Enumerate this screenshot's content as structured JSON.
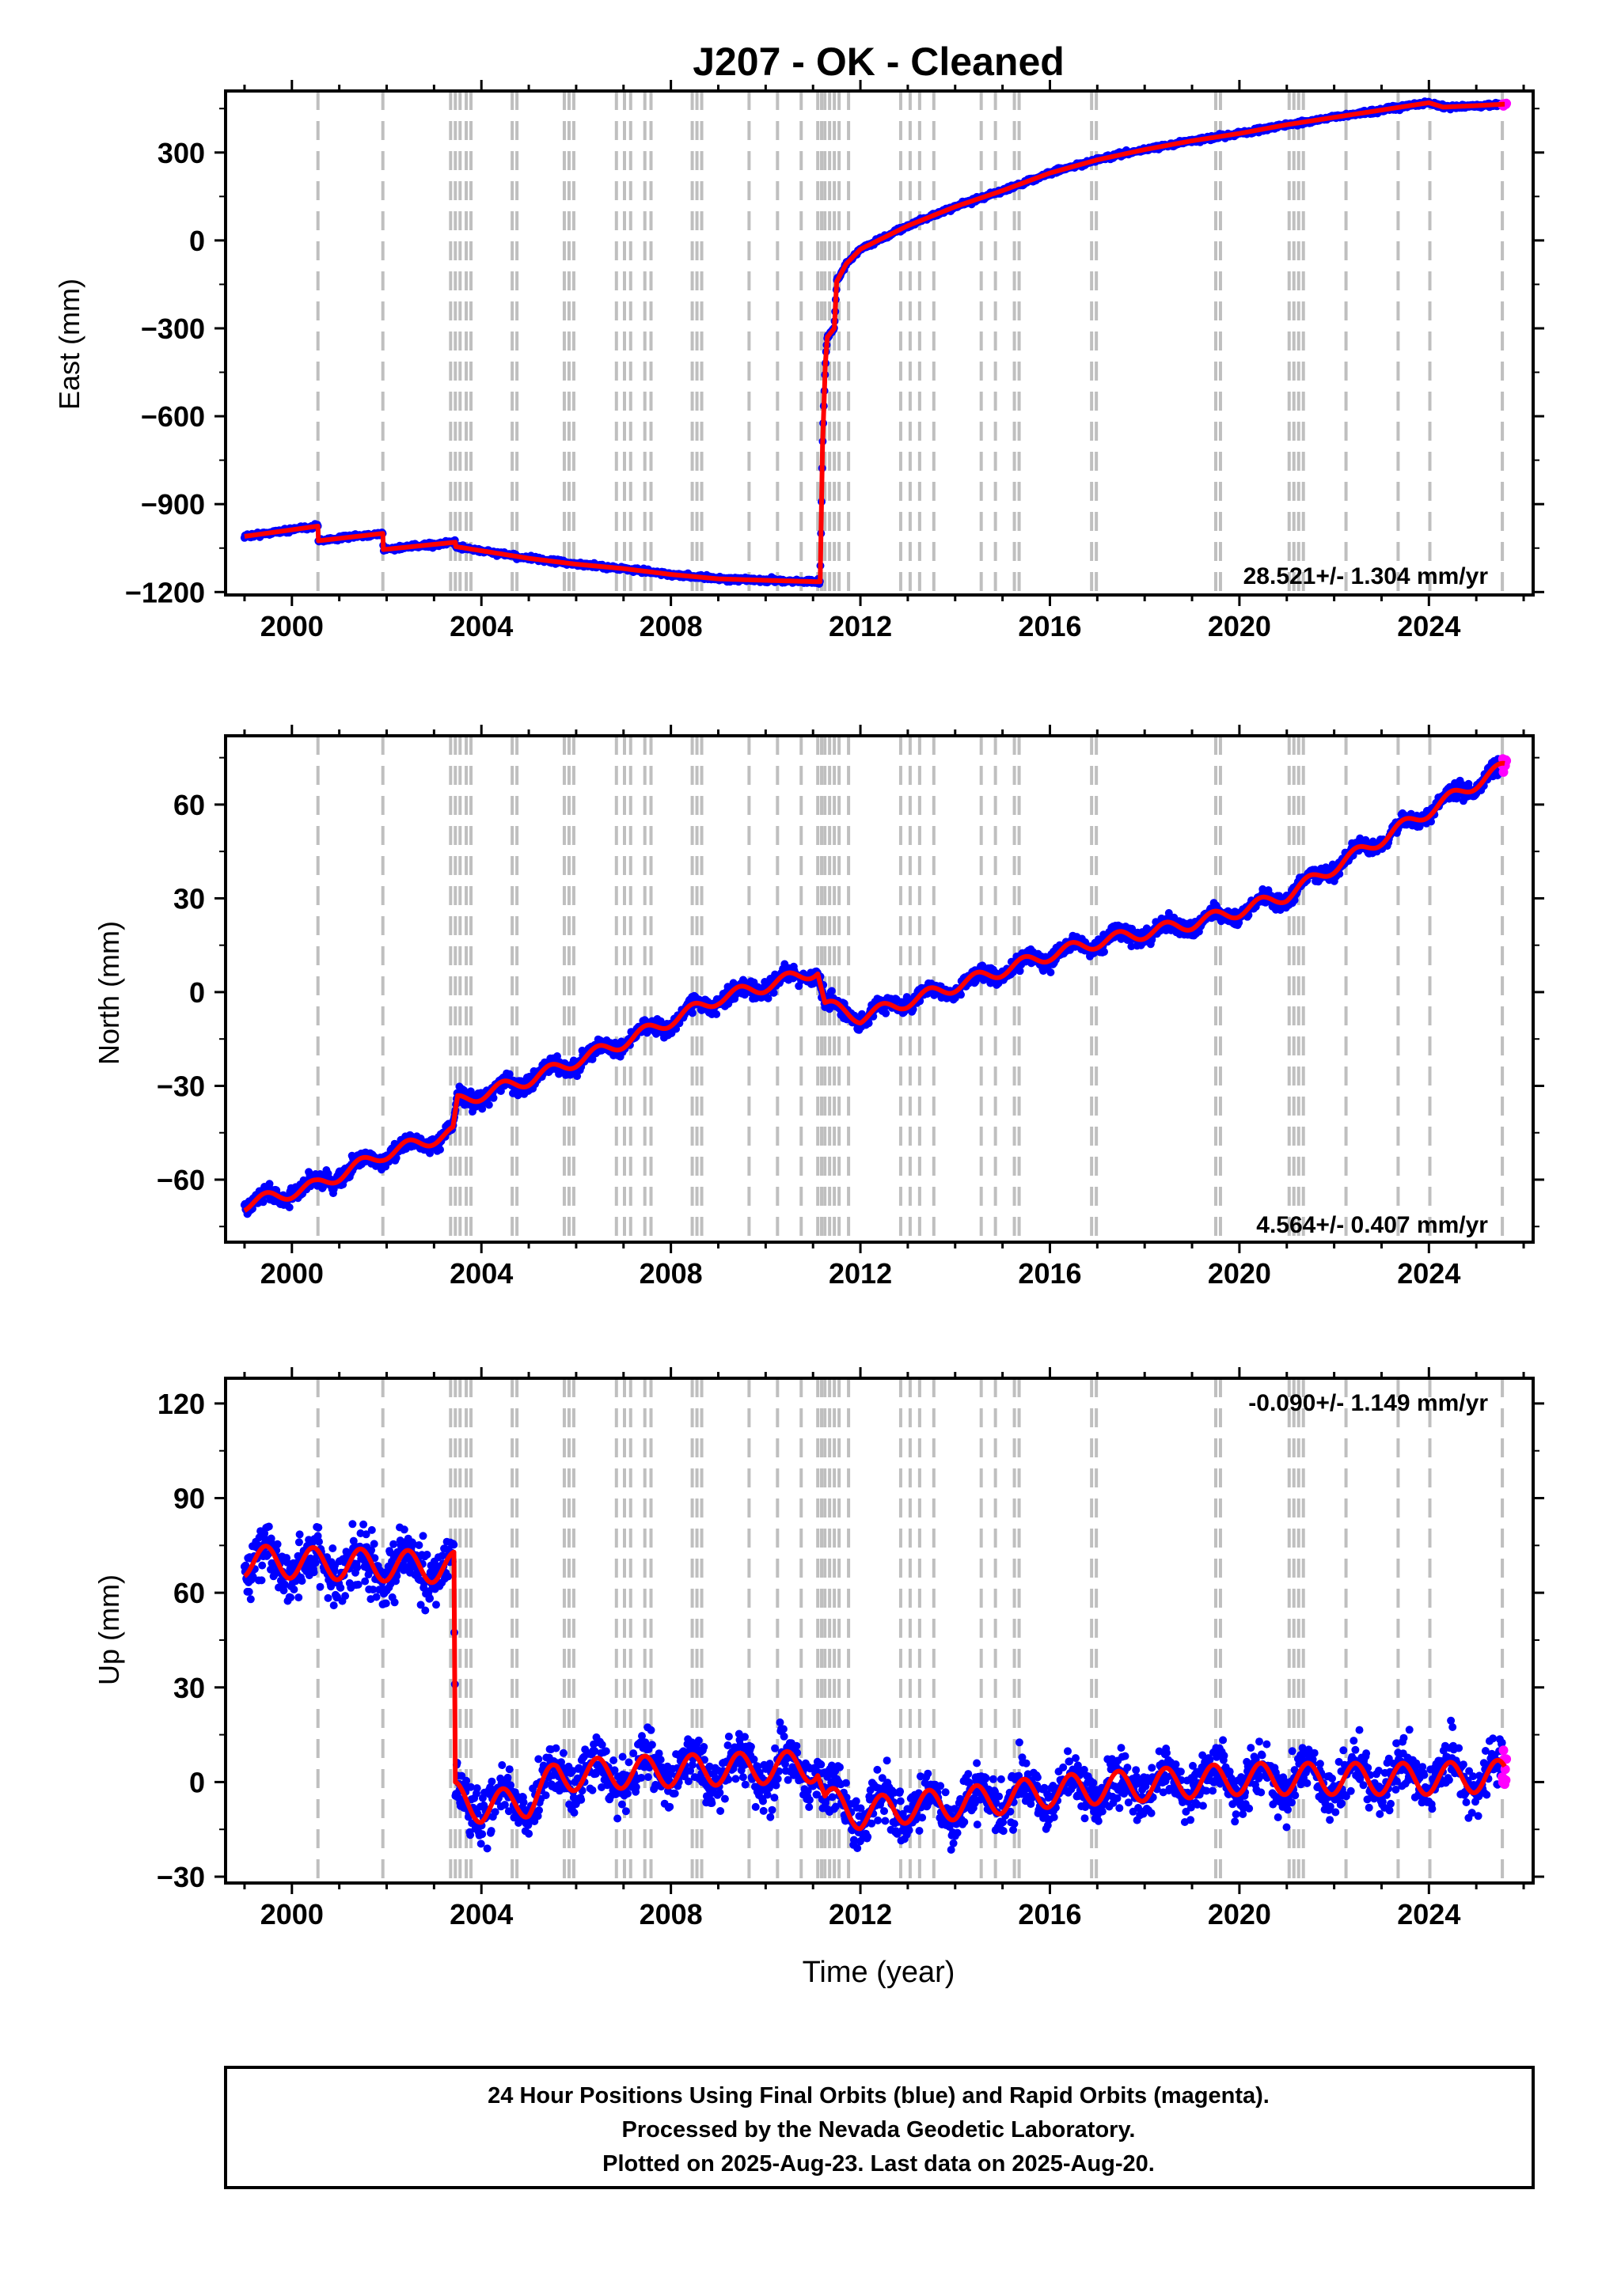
{
  "title": "J207  - OK - Cleaned",
  "colors": {
    "final_orbits": "#0000ff",
    "rapid_orbits": "#ff00ff",
    "model": "#ff0000",
    "events": "#bfbfbf"
  },
  "event_years": [
    2000.55,
    2001.92,
    2003.35,
    2003.45,
    2003.55,
    2003.68,
    2003.78,
    2004.65,
    2004.75,
    2005.75,
    2005.85,
    2005.95,
    2006.85,
    2007.02,
    2007.15,
    2007.45,
    2007.58,
    2008.45,
    2008.55,
    2008.65,
    2009.65,
    2010.25,
    2010.75,
    2011.1,
    2011.18,
    2011.25,
    2011.35,
    2011.45,
    2011.55,
    2011.75,
    2012.85,
    2013.05,
    2013.25,
    2013.55,
    2014.55,
    2014.85,
    2015.25,
    2015.35,
    2016.88,
    2016.98,
    2019.5,
    2019.6,
    2021.05,
    2021.15,
    2021.25,
    2021.35,
    2022.25,
    2023.35,
    2024.02,
    2025.55
  ],
  "chart_data": [
    {
      "type": "scatter",
      "ylabel": "East (mm)",
      "xlim": [
        1998.6,
        2026.2
      ],
      "ylim": [
        -1210,
        510
      ],
      "xticks": [
        2000,
        2004,
        2008,
        2012,
        2016,
        2020,
        2024
      ],
      "xtick_labels": [
        "2000",
        "2004",
        "2008",
        "2012",
        "2016",
        "2020",
        "2024"
      ],
      "yticks": [
        -1200,
        -900,
        -600,
        -300,
        0,
        300
      ],
      "ytick_labels": [
        "−1200",
        "−900",
        "−600",
        "−300",
        "0",
        "300"
      ],
      "rate_label": "28.521+/- 1.304 mm/yr",
      "model_knots": [
        [
          1999.0,
          -1010
        ],
        [
          2000.55,
          -975
        ],
        [
          2000.56,
          -1025
        ],
        [
          2001.92,
          -1000
        ],
        [
          2001.93,
          -1055
        ],
        [
          2003.45,
          -1030
        ],
        [
          2003.46,
          -1045
        ],
        [
          2005.0,
          -1085
        ],
        [
          2006.0,
          -1105
        ],
        [
          2007.0,
          -1120
        ],
        [
          2008.0,
          -1140
        ],
        [
          2009.0,
          -1155
        ],
        [
          2010.0,
          -1160
        ],
        [
          2011.15,
          -1165
        ],
        [
          2011.2,
          -700
        ],
        [
          2011.26,
          -420
        ],
        [
          2011.3,
          -330
        ],
        [
          2011.45,
          -300
        ],
        [
          2011.5,
          -140
        ],
        [
          2011.7,
          -80
        ],
        [
          2012.0,
          -30
        ],
        [
          2013.0,
          50
        ],
        [
          2014.0,
          115
        ],
        [
          2015.0,
          170
        ],
        [
          2016.0,
          230
        ],
        [
          2017.0,
          275
        ],
        [
          2018.0,
          310
        ],
        [
          2019.0,
          340
        ],
        [
          2020.0,
          365
        ],
        [
          2021.0,
          395
        ],
        [
          2022.0,
          420
        ],
        [
          2023.0,
          445
        ],
        [
          2024.0,
          470
        ],
        [
          2024.3,
          455
        ],
        [
          2025.0,
          460
        ],
        [
          2025.6,
          465
        ]
      ],
      "noise": 6,
      "seasonal": 0
    },
    {
      "type": "scatter",
      "ylabel": "North (mm)",
      "xlim": [
        1998.6,
        2026.2
      ],
      "ylim": [
        -80,
        82
      ],
      "xticks": [
        2000,
        2004,
        2008,
        2012,
        2016,
        2020,
        2024
      ],
      "xtick_labels": [
        "2000",
        "2004",
        "2008",
        "2012",
        "2016",
        "2020",
        "2024"
      ],
      "yticks": [
        -60,
        -30,
        0,
        30,
        60
      ],
      "ytick_labels": [
        "−60",
        "−30",
        "0",
        "30",
        "60"
      ],
      "rate_label": "4.564+/- 0.407 mm/yr",
      "model_knots": [
        [
          1999.0,
          -68
        ],
        [
          2000.5,
          -62
        ],
        [
          2001.9,
          -52
        ],
        [
          2003.4,
          -45
        ],
        [
          2003.5,
          -35
        ],
        [
          2005.0,
          -28
        ],
        [
          2006.0,
          -22
        ],
        [
          2007.0,
          -16
        ],
        [
          2008.0,
          -9
        ],
        [
          2009.0,
          -2
        ],
        [
          2010.0,
          2
        ],
        [
          2011.1,
          7
        ],
        [
          2011.25,
          -4
        ],
        [
          2012.0,
          -8
        ],
        [
          2013.0,
          -3
        ],
        [
          2014.0,
          2
        ],
        [
          2015.0,
          7
        ],
        [
          2016.0,
          12
        ],
        [
          2017.0,
          16
        ],
        [
          2018.0,
          19
        ],
        [
          2019.0,
          22
        ],
        [
          2020.0,
          26
        ],
        [
          2021.0,
          31
        ],
        [
          2022.0,
          40
        ],
        [
          2023.0,
          49
        ],
        [
          2024.0,
          58
        ],
        [
          2025.0,
          67
        ],
        [
          2025.6,
          72
        ]
      ],
      "noise": 2.2,
      "seasonal": 2.0
    },
    {
      "type": "scatter",
      "ylabel": "Up (mm)",
      "xlabel": "Time (year)",
      "xlim": [
        1998.6,
        2026.2
      ],
      "ylim": [
        -32,
        128
      ],
      "xticks": [
        2000,
        2004,
        2008,
        2012,
        2016,
        2020,
        2024
      ],
      "xtick_labels": [
        "2000",
        "2004",
        "2008",
        "2012",
        "2016",
        "2020",
        "2024"
      ],
      "yticks": [
        -30,
        0,
        30,
        60,
        90,
        120
      ],
      "ytick_labels": [
        "−30",
        "0",
        "30",
        "60",
        "90",
        "120"
      ],
      "rate_label": "-0.090+/- 1.149 mm/yr",
      "model_knots": [
        [
          1999.0,
          70
        ],
        [
          2003.42,
          68
        ],
        [
          2003.45,
          -5
        ],
        [
          2004.0,
          -8
        ],
        [
          2005.0,
          -6
        ],
        [
          2005.6,
          2
        ],
        [
          2007.0,
          3
        ],
        [
          2009.0,
          4
        ],
        [
          2011.1,
          5
        ],
        [
          2011.25,
          -6
        ],
        [
          2012.0,
          -10
        ],
        [
          2013.0,
          -8
        ],
        [
          2014.0,
          -7
        ],
        [
          2015.0,
          -5
        ],
        [
          2016.0,
          -3
        ],
        [
          2018.0,
          -1
        ],
        [
          2020.0,
          1
        ],
        [
          2022.0,
          1
        ],
        [
          2024.0,
          1
        ],
        [
          2025.6,
          2
        ]
      ],
      "noise": 7,
      "seasonal": 5
    }
  ],
  "footer": {
    "line1": "24 Hour Positions Using Final Orbits (blue) and Rapid Orbits (magenta).",
    "line2": "Processed by the Nevada Geodetic Laboratory.",
    "line3": "Plotted on 2025-Aug-23. Last data on 2025-Aug-20."
  }
}
